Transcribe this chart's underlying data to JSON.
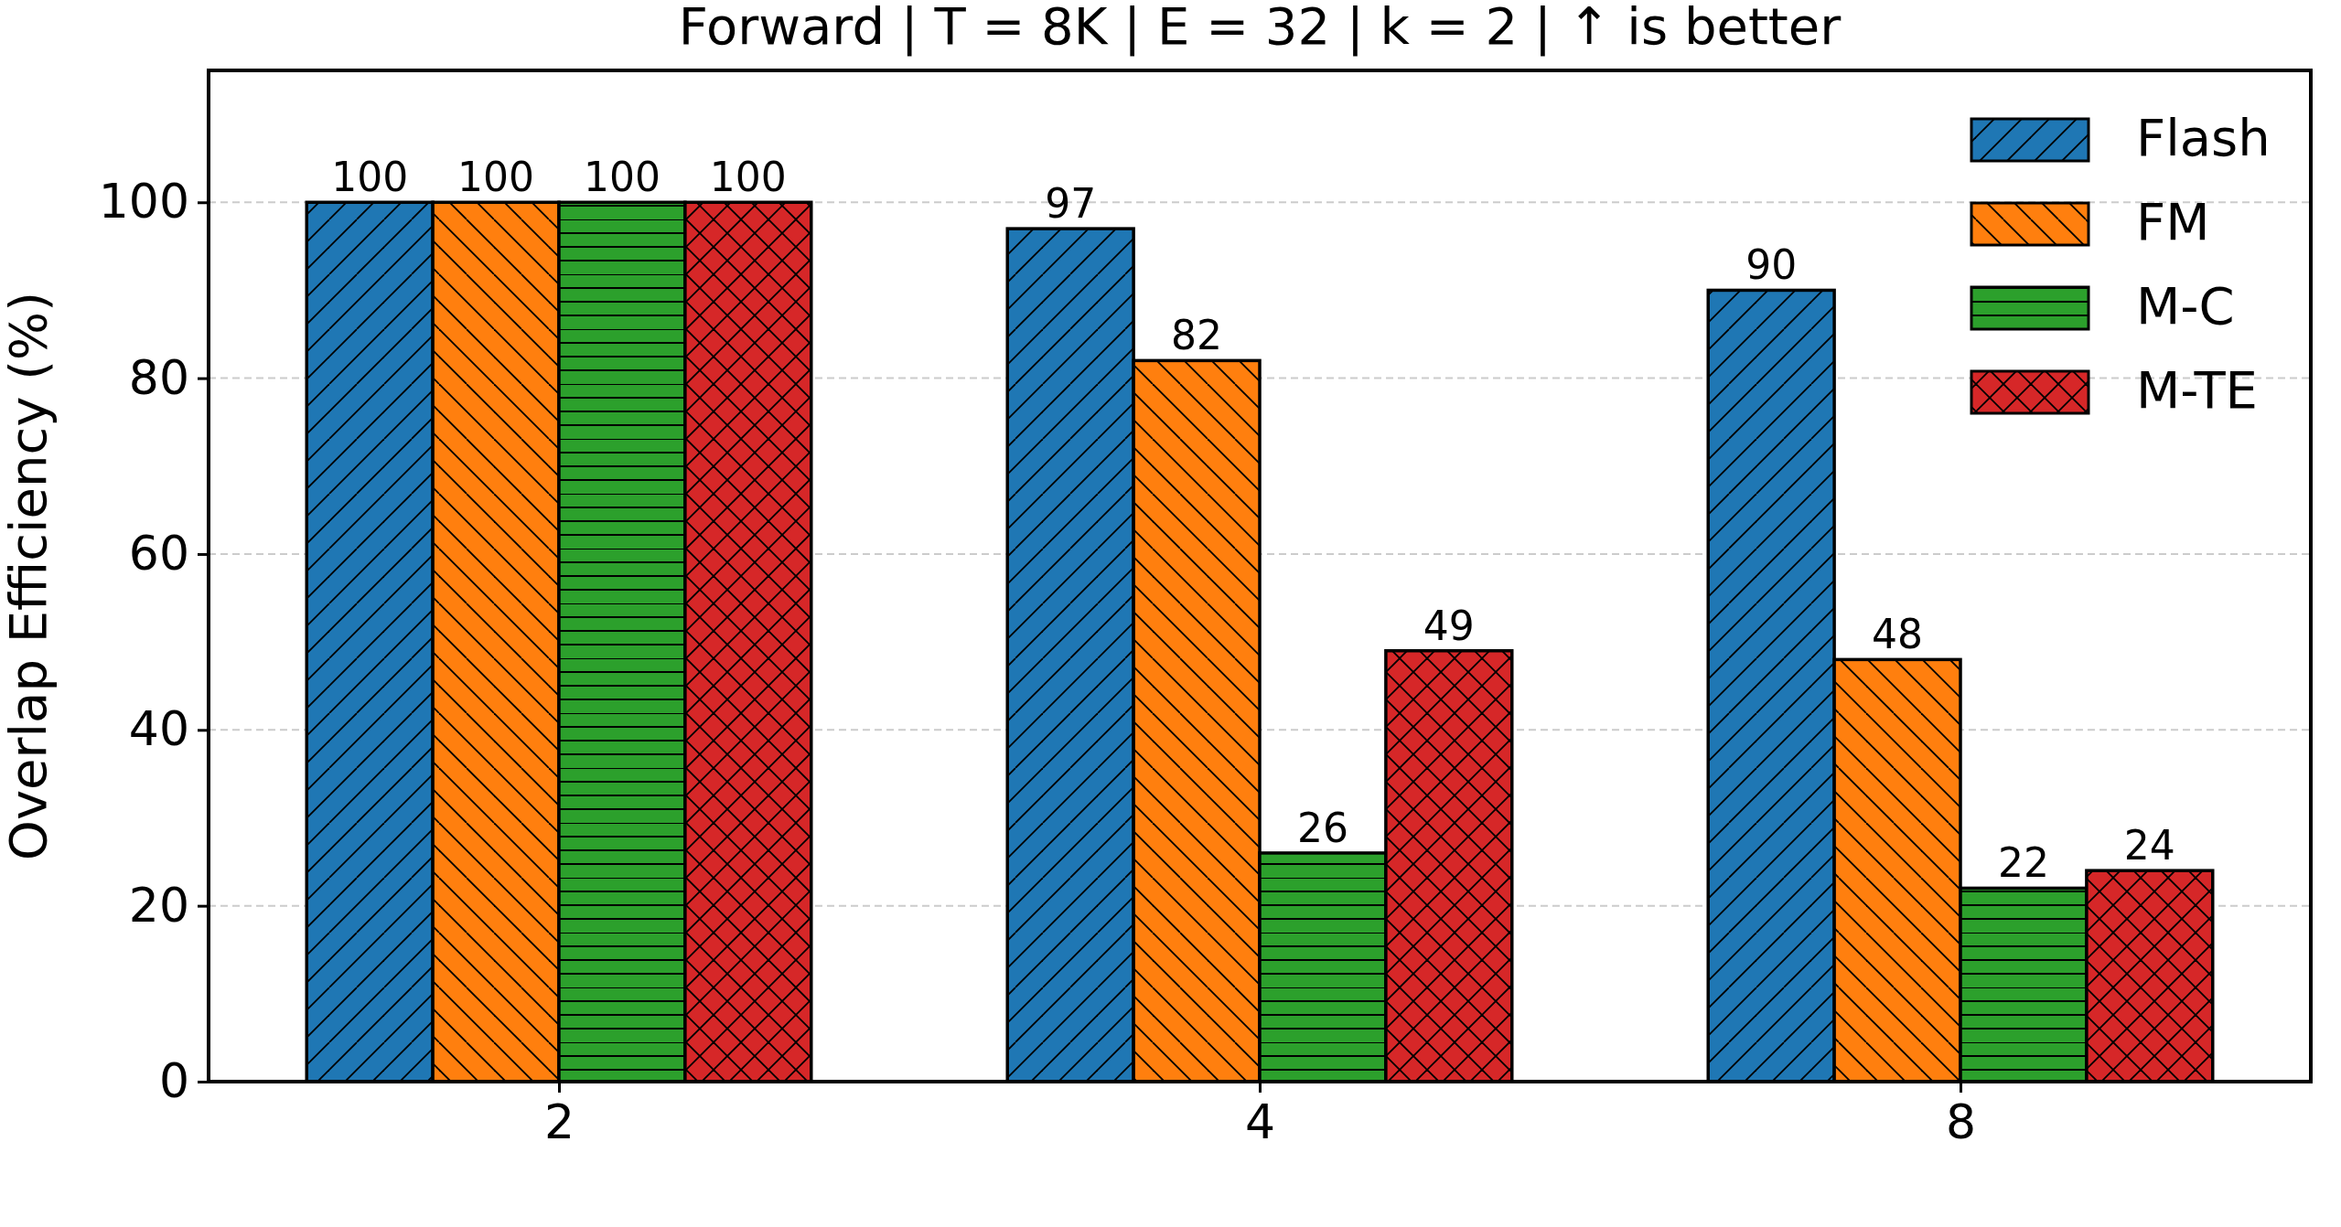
{
  "chart_data": {
    "type": "bar",
    "title": "Forward | T = 8K | E = 32 | k = 2 |  ↑  is better",
    "ylabel": "Overlap Efficiency (%)",
    "categories": [
      "2",
      "4",
      "8"
    ],
    "series": [
      {
        "name": "Flash",
        "color": "#1f77b4",
        "values": [
          100,
          97,
          90
        ]
      },
      {
        "name": "FM",
        "color": "#ff7f0e",
        "values": [
          100,
          82,
          48
        ]
      },
      {
        "name": "M-C",
        "color": "#2ca02c",
        "values": [
          100,
          26,
          22
        ]
      },
      {
        "name": "M-TE",
        "color": "#d62728",
        "values": [
          100,
          49,
          24
        ]
      }
    ],
    "ylim": [
      0,
      115
    ],
    "yticks": [
      0,
      20,
      40,
      60,
      80,
      100
    ],
    "grid": "y",
    "legend": "top right",
    "data_labels": true
  }
}
